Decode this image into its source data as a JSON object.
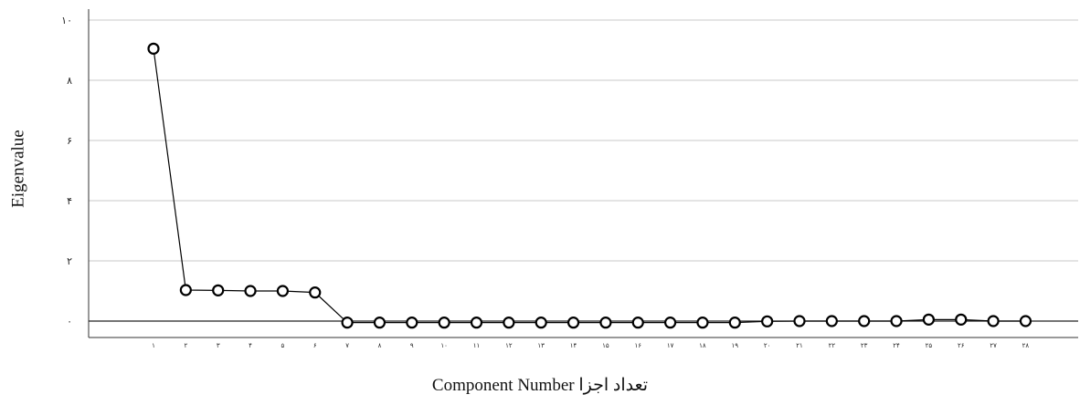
{
  "chart_data": {
    "type": "line",
    "xlabel": "Component Number تعداد اجزا",
    "ylabel": "Eigenvalue",
    "ylim": [
      0,
      10
    ],
    "yticks": [
      "۰",
      "۲",
      "۴",
      "۶",
      "۸",
      "۱۰"
    ],
    "ytick_values": [
      0,
      2,
      4,
      6,
      8,
      10
    ],
    "grid": true,
    "marker": "hollow-circle",
    "series": [
      {
        "x": [
          1,
          2,
          3,
          4,
          5,
          6,
          7,
          8,
          9,
          10,
          11,
          12,
          13,
          14,
          15,
          16,
          17,
          18,
          19,
          20,
          21,
          22,
          23,
          24,
          25,
          26,
          27,
          28
        ],
        "x_labels": [
          "۱",
          "۲",
          "۳",
          "۴",
          "۵",
          "۶",
          "۷",
          "۸",
          "۹",
          "۱۰",
          "۱۱",
          "۱۲",
          "۱۳",
          "۱۴",
          "۱۵",
          "۱۶",
          "۱۷",
          "۱۸",
          "۱۹",
          "۲۰",
          "۲۱",
          "۲۲",
          "۲۳",
          "۲۴",
          "۲۵",
          "۲۶",
          "۲۷",
          "۲۸"
        ],
        "values": [
          9.05,
          1.03,
          1.02,
          1.0,
          1.0,
          0.95,
          -0.05,
          -0.05,
          -0.05,
          -0.05,
          -0.05,
          -0.05,
          -0.05,
          -0.05,
          -0.05,
          -0.05,
          -0.05,
          -0.05,
          -0.05,
          -0.01,
          0.0,
          0.0,
          0.0,
          0.0,
          0.05,
          0.05,
          0.0,
          0.0
        ]
      }
    ]
  }
}
